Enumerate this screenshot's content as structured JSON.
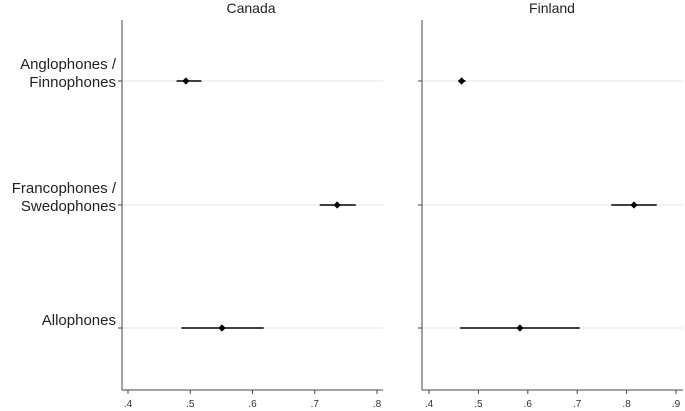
{
  "chart_data": {
    "type": "scatter",
    "categories": [
      "Anglophones /\nFinnophones",
      "Francophones /\nSwedophones",
      "Allophones"
    ],
    "panels": [
      {
        "title": "Canada",
        "xlim": [
          0.4,
          0.8
        ],
        "ticks": [
          ".4",
          ".5",
          ".6",
          ".7",
          ".8"
        ],
        "tick_values": [
          0.4,
          0.5,
          0.6,
          0.7,
          0.8
        ],
        "estimates": [
          0.493,
          0.736,
          0.551
        ],
        "ci_low": [
          0.478,
          0.708,
          0.486
        ],
        "ci_high": [
          0.518,
          0.766,
          0.618
        ]
      },
      {
        "title": "Finland",
        "xlim": [
          0.4,
          0.9
        ],
        "ticks": [
          ".4",
          ".5",
          ".6",
          ".7",
          ".8",
          ".9"
        ],
        "tick_values": [
          0.4,
          0.5,
          0.6,
          0.7,
          0.8,
          0.9
        ],
        "estimates": [
          0.466,
          0.815,
          0.584
        ],
        "ci_low": [
          0.459,
          0.769,
          0.463
        ],
        "ci_high": [
          0.474,
          0.861,
          0.705
        ]
      }
    ],
    "grid": true,
    "xlabel": "",
    "ylabel": ""
  }
}
